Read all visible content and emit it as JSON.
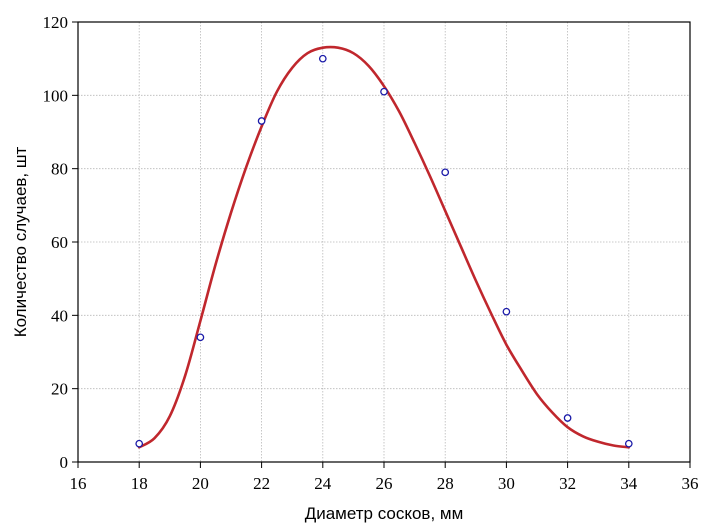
{
  "chart_data": {
    "type": "scatter",
    "xlabel": "Диаметр сосков, мм",
    "ylabel": "Количество случаев, шт",
    "xlim": [
      16,
      36
    ],
    "ylim": [
      0,
      120
    ],
    "x_ticks": [
      16,
      18,
      20,
      22,
      24,
      26,
      28,
      30,
      32,
      34,
      36
    ],
    "y_ticks": [
      0,
      20,
      40,
      60,
      80,
      100,
      120
    ],
    "grid": true,
    "series": [
      {
        "type": "scatter",
        "color": "#1a1aa8",
        "x": [
          18,
          20,
          22,
          24,
          26,
          28,
          30,
          32,
          34
        ],
        "y": [
          5,
          34,
          93,
          110,
          101,
          79,
          41,
          12,
          5
        ]
      },
      {
        "type": "line",
        "color": "#c0272d",
        "x": [
          18,
          18.5,
          19,
          19.5,
          20,
          20.5,
          21,
          21.5,
          22,
          22.5,
          23,
          23.5,
          24,
          24.5,
          25,
          25.5,
          26,
          26.5,
          27,
          27.5,
          28,
          28.5,
          29,
          29.5,
          30,
          30.5,
          31,
          31.5,
          32,
          32.5,
          33,
          33.5,
          34
        ],
        "y": [
          4,
          6.5,
          12.5,
          23.5,
          38.5,
          54,
          68,
          80.5,
          91.5,
          101,
          107.5,
          111.5,
          113,
          113,
          111.5,
          108,
          102.5,
          95.5,
          87,
          78,
          68.5,
          59,
          49.5,
          40.5,
          32,
          25,
          18.5,
          13.5,
          9.5,
          7,
          5.5,
          4.5,
          4
        ]
      }
    ]
  }
}
